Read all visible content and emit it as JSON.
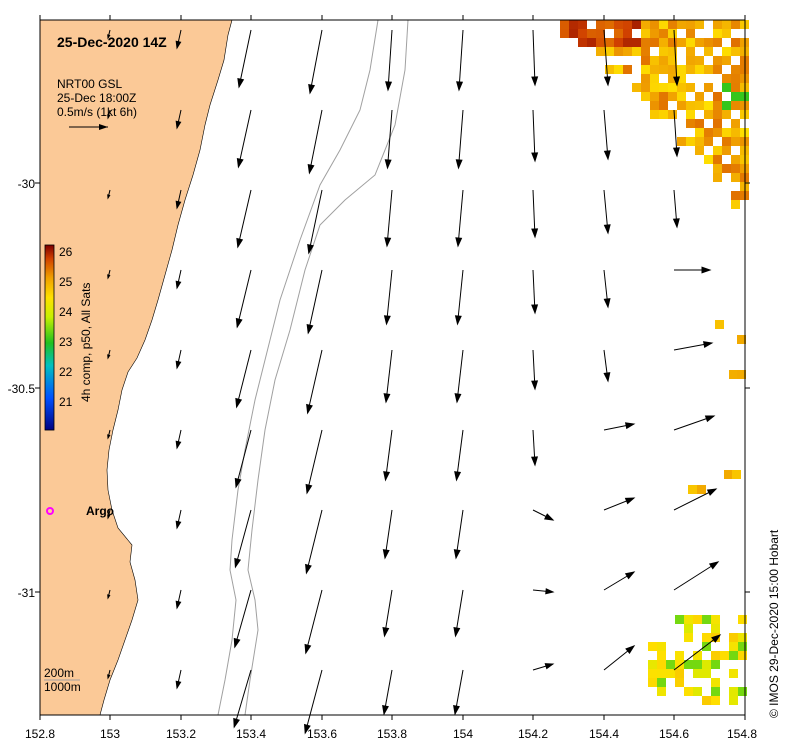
{
  "title": "25-Dec-2020 14Z",
  "current_legend": {
    "line1": "NRT00 GSL",
    "line2": "25-Dec 18:00Z",
    "line3": "0.5m/s (1kt 6h)"
  },
  "colorbar": {
    "label": "4h comp, p50, All Sats",
    "ticks": [
      "26",
      "25",
      "24",
      "23",
      "22",
      "21"
    ],
    "min": 20.5,
    "max": 26.2
  },
  "float_label": "Argo",
  "depth_legend": {
    "line1": "200m",
    "line2": "1000m"
  },
  "credit": "© IMOS 29-Dec-2020 15:00 Hobart",
  "x_axis": {
    "ticks": [
      "152.8",
      "153",
      "153.2",
      "153.4",
      "153.6",
      "153.8",
      "154",
      "154.2",
      "154.4",
      "154.6",
      "154.8"
    ],
    "range": [
      152.8,
      154.8
    ]
  },
  "y_axis": {
    "ticks": [
      "-30",
      "-30.5",
      "-31"
    ],
    "range": [
      -31.3,
      -29.6
    ]
  },
  "colors": {
    "land": "#fbc997",
    "vector": "#000000",
    "contour": "#a0a0a0",
    "argo": "#ff00ff"
  }
}
